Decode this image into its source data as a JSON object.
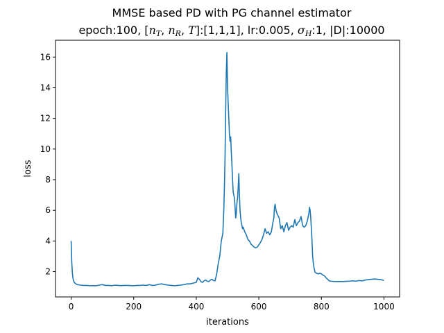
{
  "chart_data": {
    "type": "line",
    "title": "MMSE based PD with PG channel estimator",
    "subtitle_parts": {
      "prefix": "epoch:100, [",
      "n": "n",
      "sub_t": "T",
      "comma": ", ",
      "sub_r": "R",
      "t_sym": "T",
      "mid": "]:[1,1,1], lr:0.005, ",
      "sigma": "σ",
      "sub_h": "H",
      "suffix": ":1, |D|:10000"
    },
    "xlabel": "iterations",
    "ylabel": "loss",
    "xlim": [
      -50,
      1050
    ],
    "ylim": [
      0.35,
      17.1
    ],
    "xticks": [
      0,
      200,
      400,
      600,
      800,
      1000
    ],
    "yticks": [
      2,
      4,
      6,
      8,
      10,
      12,
      14,
      16
    ],
    "grid": false,
    "line_color": "#1f77b4",
    "series": [
      {
        "x": [
          0,
          2,
          4,
          6,
          8,
          10,
          15,
          20,
          30,
          40,
          50,
          60,
          70,
          80,
          90,
          100,
          110,
          120,
          130,
          140,
          150,
          160,
          170,
          180,
          190,
          200,
          210,
          220,
          230,
          240,
          250,
          260,
          270,
          280,
          290,
          300,
          310,
          320,
          330,
          340,
          350,
          360,
          370,
          380,
          390,
          400,
          405,
          410,
          415,
          420,
          425,
          430,
          435,
          440,
          445,
          450,
          455,
          460,
          465,
          470,
          475,
          480,
          485,
          488,
          490,
          492,
          494,
          496,
          498,
          500,
          502,
          504,
          506,
          508,
          510,
          512,
          514,
          516,
          518,
          520,
          522,
          524,
          526,
          528,
          530,
          532,
          534,
          536,
          538,
          540,
          542,
          544,
          546,
          548,
          550,
          555,
          560,
          565,
          570,
          575,
          580,
          585,
          590,
          595,
          600,
          605,
          610,
          615,
          620,
          625,
          630,
          635,
          640,
          645,
          648,
          650,
          652,
          655,
          658,
          660,
          665,
          670,
          675,
          680,
          685,
          690,
          695,
          700,
          705,
          710,
          715,
          720,
          725,
          730,
          735,
          740,
          745,
          750,
          755,
          760,
          762,
          764,
          766,
          768,
          770,
          772,
          774,
          776,
          778,
          780,
          785,
          790,
          795,
          800,
          805,
          810,
          815,
          820,
          825,
          830,
          840,
          850,
          860,
          870,
          880,
          890,
          900,
          910,
          920,
          930,
          940,
          950,
          960,
          970,
          980,
          990,
          1000
        ],
        "y": [
          4.0,
          2.6,
          1.9,
          1.55,
          1.4,
          1.3,
          1.2,
          1.15,
          1.12,
          1.1,
          1.1,
          1.08,
          1.09,
          1.08,
          1.12,
          1.15,
          1.1,
          1.1,
          1.08,
          1.12,
          1.1,
          1.09,
          1.1,
          1.1,
          1.09,
          1.08,
          1.1,
          1.1,
          1.12,
          1.1,
          1.15,
          1.1,
          1.12,
          1.18,
          1.2,
          1.15,
          1.12,
          1.1,
          1.08,
          1.1,
          1.12,
          1.15,
          1.2,
          1.2,
          1.25,
          1.3,
          1.6,
          1.5,
          1.35,
          1.3,
          1.4,
          1.45,
          1.38,
          1.35,
          1.45,
          1.5,
          1.42,
          1.4,
          1.8,
          2.5,
          3.0,
          4.0,
          4.5,
          6.0,
          7.5,
          9.5,
          12.5,
          15.0,
          16.3,
          14.0,
          13.0,
          12.0,
          11.0,
          10.5,
          10.8,
          9.8,
          9.0,
          8.0,
          7.2,
          7.0,
          6.8,
          6.2,
          5.5,
          5.8,
          6.5,
          6.8,
          7.5,
          8.4,
          7.0,
          6.0,
          5.5,
          5.2,
          5.0,
          4.8,
          4.9,
          4.6,
          4.4,
          4.1,
          4.0,
          3.8,
          3.7,
          3.6,
          3.55,
          3.6,
          3.75,
          3.9,
          4.1,
          4.4,
          4.8,
          4.5,
          4.6,
          4.4,
          4.6,
          5.2,
          5.5,
          6.2,
          6.4,
          6.0,
          5.8,
          5.7,
          5.5,
          4.8,
          5.0,
          4.6,
          5.0,
          5.2,
          4.7,
          4.9,
          5.0,
          4.9,
          5.4,
          5.0,
          5.2,
          5.3,
          5.6,
          5.0,
          4.9,
          5.0,
          5.3,
          5.8,
          6.2,
          6.0,
          5.5,
          4.8,
          4.0,
          3.0,
          2.6,
          2.3,
          2.1,
          1.95,
          1.9,
          1.85,
          1.9,
          1.85,
          1.78,
          1.72,
          1.6,
          1.5,
          1.4,
          1.38,
          1.36,
          1.35,
          1.36,
          1.35,
          1.37,
          1.38,
          1.4,
          1.38,
          1.42,
          1.4,
          1.45,
          1.48,
          1.5,
          1.52,
          1.5,
          1.48,
          1.42
        ]
      }
    ]
  }
}
